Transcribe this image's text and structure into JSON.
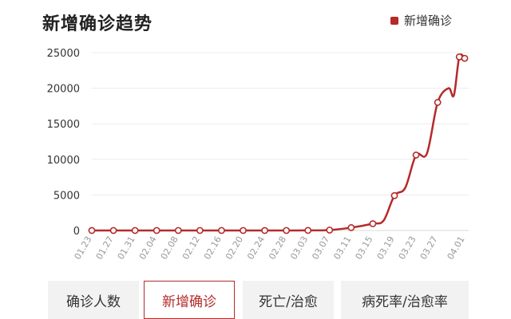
{
  "chart_data": {
    "type": "line",
    "title": "新增确诊趋势",
    "xlabel": "",
    "ylabel": "",
    "x": [
      "01.23",
      "01.27",
      "01.31",
      "02.04",
      "02.08",
      "02.12",
      "02.16",
      "02.20",
      "02.24",
      "02.28",
      "03.03",
      "03.07",
      "03.11",
      "03.15",
      "03.17",
      "03.19",
      "03.21",
      "03.23",
      "03.25",
      "03.27",
      "03.29",
      "03.30",
      "03.31",
      "04.01"
    ],
    "x_ticks": [
      "01.23",
      "01.27",
      "01.31",
      "02.04",
      "02.08",
      "02.12",
      "02.16",
      "02.20",
      "02.24",
      "02.28",
      "03.03",
      "03.07",
      "03.11",
      "03.15",
      "03.19",
      "03.23",
      "03.27",
      "04.01"
    ],
    "series": [
      {
        "name": "新增确诊",
        "color": "#b52a2a",
        "values": [
          1,
          2,
          2,
          3,
          2,
          2,
          2,
          2,
          1,
          3,
          10,
          60,
          400,
          950,
          1400,
          4900,
          6000,
          10600,
          10800,
          18000,
          20000,
          19000,
          24400,
          24200
        ]
      }
    ],
    "ylim": [
      0,
      25000
    ],
    "yticks": [
      0,
      5000,
      10000,
      15000,
      20000,
      25000
    ],
    "grid": "horizontal",
    "legend": "top-right"
  },
  "tabs": [
    {
      "label": "确诊人数",
      "active": false
    },
    {
      "label": "新增确诊",
      "active": true
    },
    {
      "label": "死亡/治愈",
      "active": false
    },
    {
      "label": "病死率/治愈率",
      "active": false
    }
  ]
}
